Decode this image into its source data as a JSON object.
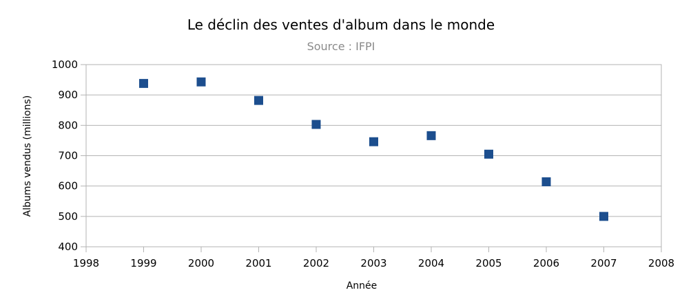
{
  "chart_data": {
    "type": "scatter",
    "title": "Le déclin des ventes d'album dans le monde",
    "subtitle": "Source : IFPI",
    "xlabel": "Année",
    "ylabel": "Albums  vendus  (millions)",
    "xlim": [
      1998,
      2008
    ],
    "ylim": [
      400,
      1000
    ],
    "x_ticks": [
      1998,
      1999,
      2000,
      2001,
      2002,
      2003,
      2004,
      2005,
      2006,
      2007,
      2008
    ],
    "y_ticks": [
      400,
      500,
      600,
      700,
      800,
      900,
      1000
    ],
    "grid": true,
    "marker": "square",
    "marker_color": "#1c4e8e",
    "x": [
      1999,
      2000,
      2001,
      2002,
      2003,
      2004,
      2005,
      2006,
      2007
    ],
    "y": [
      938,
      943,
      882,
      803,
      746,
      766,
      705,
      614,
      500
    ]
  }
}
